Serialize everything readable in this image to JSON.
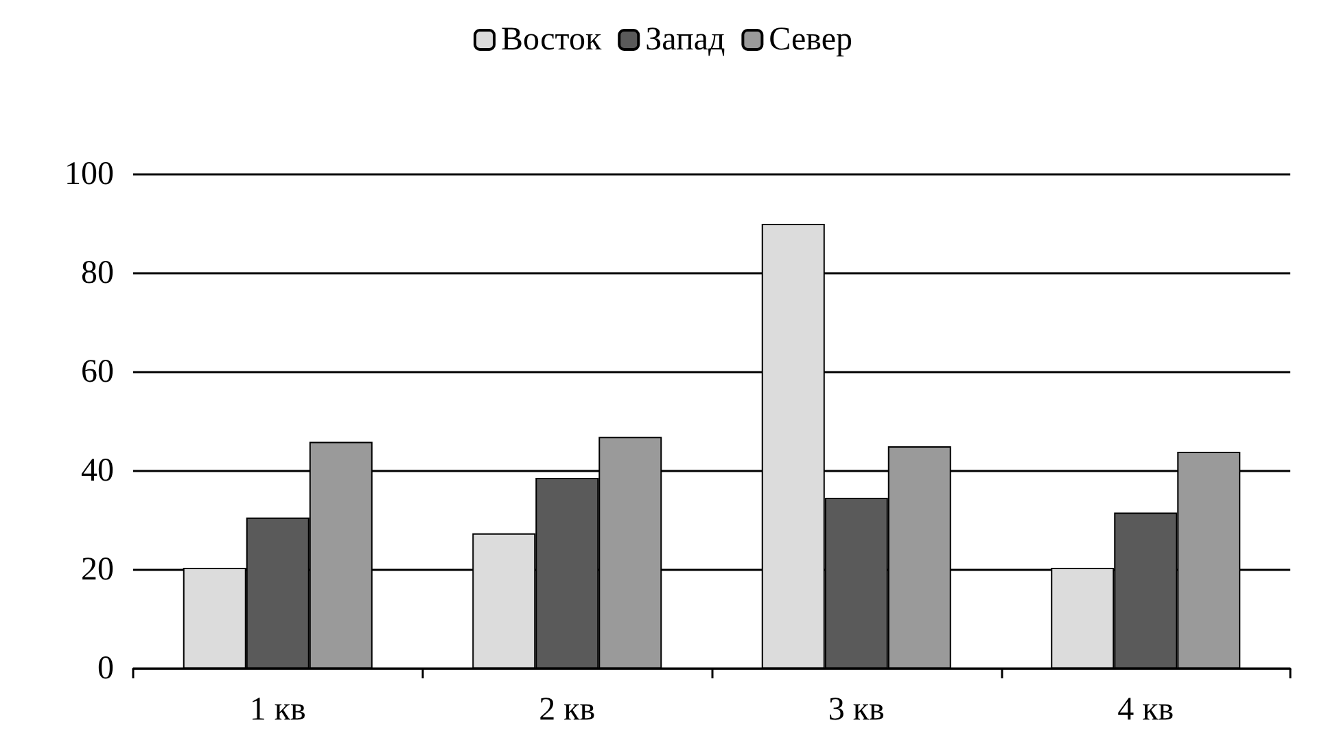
{
  "chart_data": {
    "type": "bar",
    "categories": [
      "1 кв",
      "2 кв",
      "3 кв",
      "4 кв"
    ],
    "series": [
      {
        "name": "Восток",
        "color": "#dcdcdc",
        "values": [
          20.4,
          27.4,
          90,
          20.4
        ]
      },
      {
        "name": "Запад",
        "color": "#5a5a5a",
        "values": [
          30.6,
          38.6,
          34.6,
          31.6
        ]
      },
      {
        "name": "Север",
        "color": "#9a9a9a",
        "values": [
          45.9,
          46.9,
          45,
          43.9
        ]
      }
    ],
    "ylim": [
      0,
      100
    ],
    "yticks": [
      0,
      20,
      40,
      60,
      80,
      100
    ],
    "grid": "y",
    "legend": "top"
  }
}
